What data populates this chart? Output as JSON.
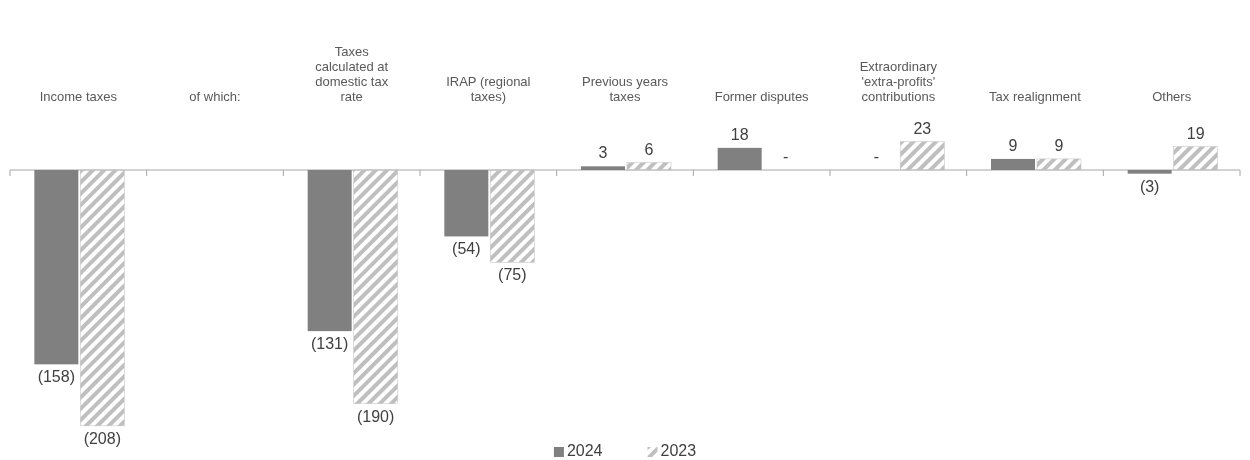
{
  "chart_data": {
    "type": "bar",
    "categories": [
      "Income taxes",
      null,
      "Taxes calculated at domestic tax rate",
      "IRAP (regional taxes)",
      "Previous years taxes",
      "Former disputes",
      "Extraordinary 'extra-profits' contributions",
      "Tax realignment",
      "Others"
    ],
    "series": [
      {
        "name": "2024",
        "color": "#808080",
        "values": [
          -158,
          null,
          -131,
          -54,
          3,
          18,
          null,
          9,
          -3
        ],
        "value_labels": [
          "(158)",
          null,
          "(131)",
          "(54)",
          "3",
          "18",
          "-",
          "9",
          "(3)"
        ]
      },
      {
        "name": "2023",
        "color": "#bfbfbf",
        "values": [
          -208,
          null,
          -190,
          -75,
          6,
          null,
          23,
          9,
          19
        ],
        "value_labels": [
          "(208)",
          null,
          "(190)",
          "(75)",
          "6",
          "-",
          "23",
          "9",
          "19"
        ]
      }
    ],
    "annotations": [
      "of which:"
    ],
    "legend": "bottom"
  }
}
